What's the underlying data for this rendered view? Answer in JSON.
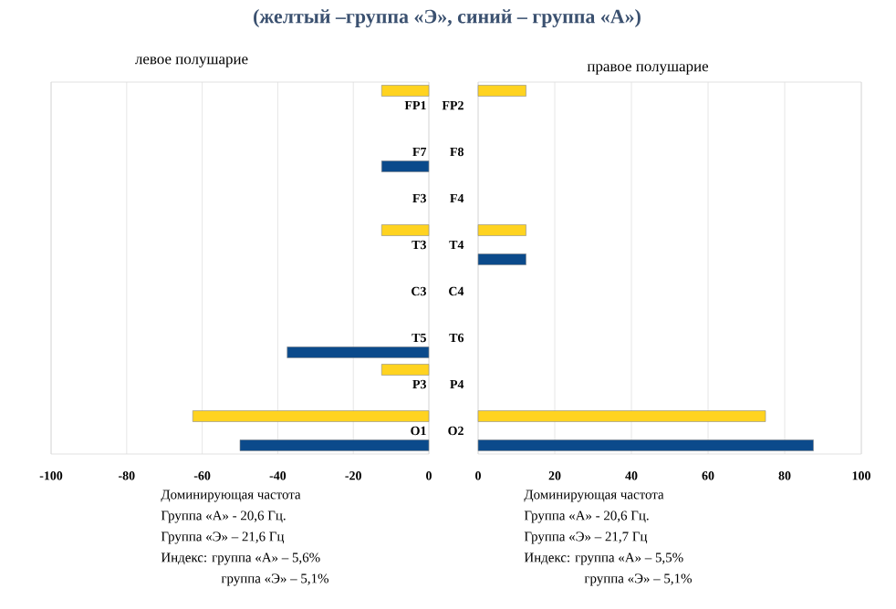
{
  "chart_data": [
    {
      "type": "bar",
      "orientation": "horizontal",
      "title": "(желтый –группа «Э», синий – группа «А»)",
      "subtitle": "левое полушарие",
      "categories": [
        "FP1",
        "F7",
        "F3",
        "T3",
        "C3",
        "T5",
        "P3",
        "O1"
      ],
      "series": [
        {
          "color": "#ffd320",
          "values": [
            -12.5,
            null,
            null,
            -12.5,
            null,
            null,
            -12.5,
            -62.5
          ]
        },
        {
          "color": "#0b4a8b",
          "values": [
            null,
            -12.5,
            null,
            null,
            null,
            -37.5,
            null,
            -50
          ]
        }
      ],
      "xlim": [
        -100,
        0
      ],
      "xticks": [
        -100,
        -80,
        -60,
        -40,
        -20,
        0
      ],
      "grid": "x",
      "annotations": [
        "Доминирующая частота",
        "Группа «А» -  20,6 Гц.",
        "Группа «Э» – 21,6 Гц",
        "Индекс: группа «А» – 5,6%",
        "группа «Э» – 5,1%"
      ]
    },
    {
      "type": "bar",
      "orientation": "horizontal",
      "title": "правое полушарие",
      "categories": [
        "FP2",
        "F8",
        "F4",
        "T4",
        "C4",
        "T6",
        "P4",
        "O2"
      ],
      "series": [
        {
          "color": "#ffd320",
          "values": [
            12.5,
            null,
            null,
            12.5,
            null,
            null,
            null,
            75
          ]
        },
        {
          "color": "#0b4a8b",
          "values": [
            null,
            null,
            null,
            12.5,
            null,
            null,
            null,
            87.5
          ]
        }
      ],
      "xlim": [
        0,
        100
      ],
      "xticks": [
        0,
        20,
        40,
        60,
        80,
        100
      ],
      "grid": "x",
      "annotations": [
        "Доминирующая частота",
        "Группа «А» -  20,6 Гц.",
        "Группа «Э» – 21,7 Гц",
        "Индекс: группа «А» – 5,5%",
        "группа «Э» – 5,1%"
      ]
    }
  ]
}
